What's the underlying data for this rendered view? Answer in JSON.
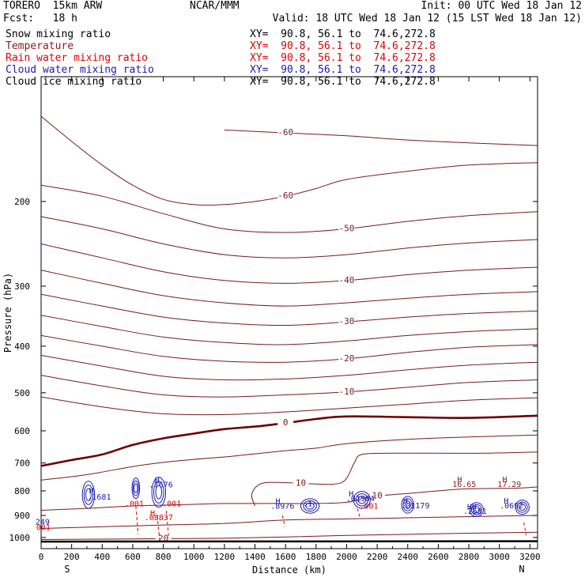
{
  "header": {
    "model": "TORERO  15km ARW",
    "forecast": "Fcst:   18 h",
    "center": "NCAR/MMM",
    "init": "Init: 00 UTC Wed 18 Jan 12",
    "valid": "Valid: 18 UTC Wed 18 Jan 12 (15 LST Wed 18 Jan 12)"
  },
  "fields": [
    {
      "name": "Snow mixing ratio",
      "xy": "XY=  90.8, 56.1 to  74.6,272.8",
      "name_color": "#000000",
      "xy_color": "#000000"
    },
    {
      "name": "Temperature",
      "xy": "XY=  90.8, 56.1 to  74.6,272.8",
      "name_color": "#8b1a1a",
      "xy_color": "#e00000"
    },
    {
      "name": "Rain water mixing ratio",
      "xy": "XY=  90.8, 56.1 to  74.6,272.8",
      "name_color": "#e00000",
      "xy_color": "#e00000"
    },
    {
      "name": "Cloud water mixing ratio",
      "xy": "XY=  90.8, 56.1 to  74.6,272.8",
      "name_color": "#1a1ab0",
      "xy_color": "#1a1ab0"
    },
    {
      "name": "Cloud ice mixing ratio",
      "xy": "XY=  90.8, 56.1 to  74.6,272.8",
      "name_color": "#000000",
      "xy_color": "#000000"
    }
  ],
  "chart_data": {
    "type": "contour cross-section",
    "xlabel": "Distance (km)",
    "ylabel": "Pressure (hPa)",
    "xlim": [
      0,
      3250
    ],
    "ylim": [
      1055,
      110
    ],
    "y_scale": "log",
    "x_ticks": [
      0,
      200,
      400,
      600,
      800,
      1000,
      1200,
      1400,
      1600,
      1800,
      2000,
      2200,
      2400,
      2600,
      2800,
      3000,
      3200
    ],
    "y_ticks": [
      200,
      300,
      400,
      500,
      600,
      700,
      800,
      900,
      1000
    ],
    "endpoints": {
      "left": "S",
      "right": "N"
    },
    "colors": {
      "temperature": "#7a1a1a",
      "freezing_line": "#6a0000",
      "cloud_water": "#1a1ab0",
      "rain": "#e00000",
      "ground": "#000000"
    },
    "temperature_isotherms": [
      {
        "value": -60,
        "points": [
          [
            0,
            133
          ],
          [
            200,
            150
          ],
          [
            400,
            168
          ],
          [
            600,
            185
          ],
          [
            800,
            198
          ],
          [
            1000,
            203
          ],
          [
            1200,
            203
          ],
          [
            1400,
            200
          ],
          [
            1600,
            195
          ],
          [
            1800,
            188
          ],
          [
            2000,
            180
          ],
          [
            2400,
            173
          ],
          [
            2800,
            168
          ],
          [
            3250,
            166
          ]
        ]
      },
      {
        "value": -60,
        "points": [
          [
            1200,
            142
          ],
          [
            1600,
            144
          ],
          [
            2000,
            146
          ],
          [
            2400,
            149
          ],
          [
            2800,
            151
          ],
          [
            3250,
            153
          ]
        ]
      },
      {
        "value": -50,
        "points": [
          [
            0,
            185
          ],
          [
            400,
            195
          ],
          [
            800,
            212
          ],
          [
            1200,
            228
          ],
          [
            1600,
            232
          ],
          [
            2000,
            228
          ],
          [
            2400,
            220
          ],
          [
            2800,
            214
          ],
          [
            3250,
            210
          ]
        ]
      },
      {
        "value": -45,
        "points": [
          [
            0,
            215
          ],
          [
            400,
            228
          ],
          [
            800,
            245
          ],
          [
            1200,
            258
          ],
          [
            1600,
            262
          ],
          [
            2000,
            258
          ],
          [
            2400,
            250
          ],
          [
            2800,
            244
          ],
          [
            3250,
            240
          ]
        ]
      },
      {
        "value": -40,
        "points": [
          [
            0,
            245
          ],
          [
            400,
            262
          ],
          [
            800,
            280
          ],
          [
            1200,
            292
          ],
          [
            1600,
            296
          ],
          [
            2000,
            292
          ],
          [
            2400,
            284
          ],
          [
            2800,
            278
          ],
          [
            3250,
            274
          ]
        ]
      },
      {
        "value": -35,
        "points": [
          [
            0,
            278
          ],
          [
            400,
            296
          ],
          [
            800,
            314
          ],
          [
            1200,
            325
          ],
          [
            1600,
            330
          ],
          [
            2000,
            325
          ],
          [
            2400,
            318
          ],
          [
            2800,
            312
          ],
          [
            3250,
            308
          ]
        ]
      },
      {
        "value": -30,
        "points": [
          [
            0,
            312
          ],
          [
            400,
            330
          ],
          [
            800,
            348
          ],
          [
            1200,
            358
          ],
          [
            1600,
            362
          ],
          [
            2000,
            356
          ],
          [
            2400,
            348
          ],
          [
            2800,
            342
          ],
          [
            3250,
            338
          ]
        ]
      },
      {
        "value": -25,
        "points": [
          [
            0,
            345
          ],
          [
            400,
            364
          ],
          [
            800,
            383
          ],
          [
            1200,
            393
          ],
          [
            1600,
            397
          ],
          [
            2000,
            390
          ],
          [
            2400,
            380
          ],
          [
            2800,
            373
          ],
          [
            3250,
            368
          ]
        ]
      },
      {
        "value": -20,
        "points": [
          [
            0,
            380
          ],
          [
            400,
            400
          ],
          [
            800,
            420
          ],
          [
            1200,
            430
          ],
          [
            1600,
            432
          ],
          [
            2000,
            425
          ],
          [
            2400,
            412
          ],
          [
            2800,
            402
          ],
          [
            3250,
            397
          ]
        ]
      },
      {
        "value": -15,
        "points": [
          [
            0,
            418
          ],
          [
            400,
            440
          ],
          [
            800,
            462
          ],
          [
            1200,
            470
          ],
          [
            1600,
            468
          ],
          [
            2000,
            460
          ],
          [
            2400,
            448
          ],
          [
            2800,
            438
          ],
          [
            3250,
            432
          ]
        ]
      },
      {
        "value": -10,
        "points": [
          [
            0,
            460
          ],
          [
            400,
            484
          ],
          [
            800,
            505
          ],
          [
            1200,
            510
          ],
          [
            1600,
            505
          ],
          [
            2000,
            498
          ],
          [
            2400,
            487
          ],
          [
            2800,
            476
          ],
          [
            3250,
            470
          ]
        ]
      },
      {
        "value": -5,
        "points": [
          [
            0,
            510
          ],
          [
            400,
            535
          ],
          [
            800,
            553
          ],
          [
            1200,
            555
          ],
          [
            1600,
            548
          ],
          [
            2000,
            538
          ],
          [
            2400,
            528
          ],
          [
            2800,
            518
          ],
          [
            3250,
            512
          ]
        ]
      },
      {
        "value": 0,
        "freezing": true,
        "points": [
          [
            0,
            710
          ],
          [
            200,
            690
          ],
          [
            400,
            672
          ],
          [
            600,
            642
          ],
          [
            800,
            622
          ],
          [
            1000,
            608
          ],
          [
            1200,
            595
          ],
          [
            1400,
            588
          ],
          [
            1600,
            578
          ],
          [
            1800,
            567
          ],
          [
            2000,
            560
          ],
          [
            2400,
            562
          ],
          [
            2800,
            564
          ],
          [
            3250,
            558
          ]
        ]
      },
      {
        "value": 5,
        "points": [
          [
            0,
            760
          ],
          [
            300,
            740
          ],
          [
            600,
            712
          ],
          [
            800,
            698
          ],
          [
            1000,
            688
          ],
          [
            1200,
            680
          ],
          [
            1400,
            670
          ],
          [
            1600,
            660
          ],
          [
            1800,
            652
          ],
          [
            2000,
            638
          ],
          [
            2400,
            625
          ],
          [
            2800,
            618
          ],
          [
            3250,
            612
          ]
        ]
      },
      {
        "value": 10,
        "points": [
          [
            0,
            878
          ],
          [
            300,
            870
          ],
          [
            600,
            860
          ],
          [
            900,
            855
          ],
          [
            1200,
            850
          ],
          [
            1500,
            850
          ],
          [
            1800,
            850
          ],
          [
            2000,
            845
          ],
          [
            2100,
            830
          ],
          [
            2200,
            820
          ],
          [
            2400,
            810
          ],
          [
            2600,
            800
          ],
          [
            2800,
            792
          ],
          [
            3100,
            790
          ],
          [
            3250,
            785
          ]
        ]
      },
      {
        "value": 10,
        "points": [
          [
            1400,
            860
          ],
          [
            1380,
            810
          ],
          [
            1460,
            770
          ],
          [
            1700,
            772
          ],
          [
            1900,
            775
          ],
          [
            1990,
            760
          ],
          [
            2050,
            700
          ],
          [
            2100,
            672
          ],
          [
            2300,
            668
          ],
          [
            2600,
            668
          ],
          [
            2900,
            668
          ],
          [
            3250,
            664
          ]
        ]
      },
      {
        "value": 15,
        "points": [
          [
            0,
            958
          ],
          [
            400,
            950
          ],
          [
            800,
            942
          ],
          [
            1200,
            935
          ],
          [
            1600,
            920
          ],
          [
            2000,
            915
          ],
          [
            2400,
            910
          ],
          [
            2800,
            905
          ],
          [
            3250,
            900
          ]
        ]
      },
      {
        "value": 20,
        "points": [
          [
            0,
            1010
          ],
          [
            400,
            1008
          ],
          [
            800,
            1006
          ],
          [
            1200,
            1004
          ],
          [
            1600,
            998
          ],
          [
            2000,
            990
          ],
          [
            2400,
            985
          ],
          [
            2800,
            980
          ],
          [
            3250,
            975
          ]
        ]
      }
    ],
    "cloud_cells": [
      {
        "x": 310,
        "p": 815,
        "rx": 40,
        "rp": 55
      },
      {
        "x": 620,
        "p": 790,
        "rx": 25,
        "rp": 40
      },
      {
        "x": 770,
        "p": 805,
        "rx": 45,
        "rp": 60
      },
      {
        "x": 1760,
        "p": 860,
        "rx": 60,
        "rp": 30
      },
      {
        "x": 2100,
        "p": 835,
        "rx": 55,
        "rp": 35
      },
      {
        "x": 2400,
        "p": 855,
        "rx": 40,
        "rp": 35
      },
      {
        "x": 2850,
        "p": 875,
        "rx": 45,
        "rp": 30
      },
      {
        "x": 3150,
        "p": 865,
        "rx": 45,
        "rp": 30
      }
    ],
    "rain_shafts": [
      {
        "x": 620,
        "p_top": 860,
        "p_bottom": 985
      },
      {
        "x": 760,
        "p_top": 900,
        "p_bottom": 1010
      },
      {
        "x": 820,
        "p_top": 880,
        "p_bottom": 1005
      },
      {
        "x": 1580,
        "p_top": 900,
        "p_bottom": 950
      },
      {
        "x": 2070,
        "p_top": 870,
        "p_bottom": 905
      },
      {
        "x": 3160,
        "p_top": 930,
        "p_bottom": 990
      }
    ],
    "annotations": [
      {
        "text": "H",
        "x": 330,
        "p": 810,
        "color": "#1a1ab0"
      },
      {
        "text": ".1681",
        "x": 380,
        "p": 835,
        "color": "#1a1ab0"
      },
      {
        "text": "H",
        "x": 760,
        "p": 770,
        "color": "#1a1ab0"
      },
      {
        "text": ".7676",
        "x": 785,
        "p": 787,
        "color": "#1a1ab0"
      },
      {
        "text": ".001",
        "x": 610,
        "p": 862,
        "color": "#e00000"
      },
      {
        "text": ".001",
        "x": 855,
        "p": 862,
        "color": "#e00000"
      },
      {
        "text": "H",
        "x": 730,
        "p": 902,
        "color": "#e00000"
      },
      {
        "text": ".08837",
        "x": 770,
        "p": 920,
        "color": "#e00000"
      },
      {
        "text": "H",
        "x": 1550,
        "p": 852,
        "color": "#1a1ab0"
      },
      {
        "text": ".8976",
        "x": 1580,
        "p": 872,
        "color": "#1a1ab0"
      },
      {
        "text": ".1",
        "x": 1745,
        "p": 862,
        "color": "#1a1ab0"
      },
      {
        "text": "H",
        "x": 2030,
        "p": 822,
        "color": "#1a1ab0"
      },
      {
        "text": ".01504",
        "x": 2090,
        "p": 840,
        "color": "#1a1ab0"
      },
      {
        "text": ".001",
        "x": 2145,
        "p": 872,
        "color": "#e00000"
      },
      {
        "text": "H",
        "x": 2385,
        "p": 850,
        "color": "#1a1ab0"
      },
      {
        "text": ".01179",
        "x": 2450,
        "p": 869,
        "color": "#1a1ab0"
      },
      {
        "text": "H",
        "x": 2740,
        "p": 768,
        "color": "#8b1a1a"
      },
      {
        "text": "16.65",
        "x": 2770,
        "p": 785,
        "color": "#8b1a1a"
      },
      {
        "text": "H",
        "x": 3035,
        "p": 768,
        "color": "#8b1a1a"
      },
      {
        "text": "17.29",
        "x": 3065,
        "p": 785,
        "color": "#8b1a1a"
      },
      {
        "text": "HH",
        "x": 2820,
        "p": 875,
        "color": "#1a1ab0"
      },
      {
        "text": ".2681",
        "x": 2840,
        "p": 893,
        "color": "#1a1ab0"
      },
      {
        "text": "H",
        "x": 3045,
        "p": 850,
        "color": "#1a1ab0"
      },
      {
        "text": ".0692",
        "x": 3080,
        "p": 869,
        "color": "#1a1ab0"
      },
      {
        "text": "249",
        "x": 10,
        "p": 940,
        "color": "#1a1ab0"
      },
      {
        "text": "001",
        "x": 15,
        "p": 965,
        "color": "#e00000"
      }
    ]
  }
}
